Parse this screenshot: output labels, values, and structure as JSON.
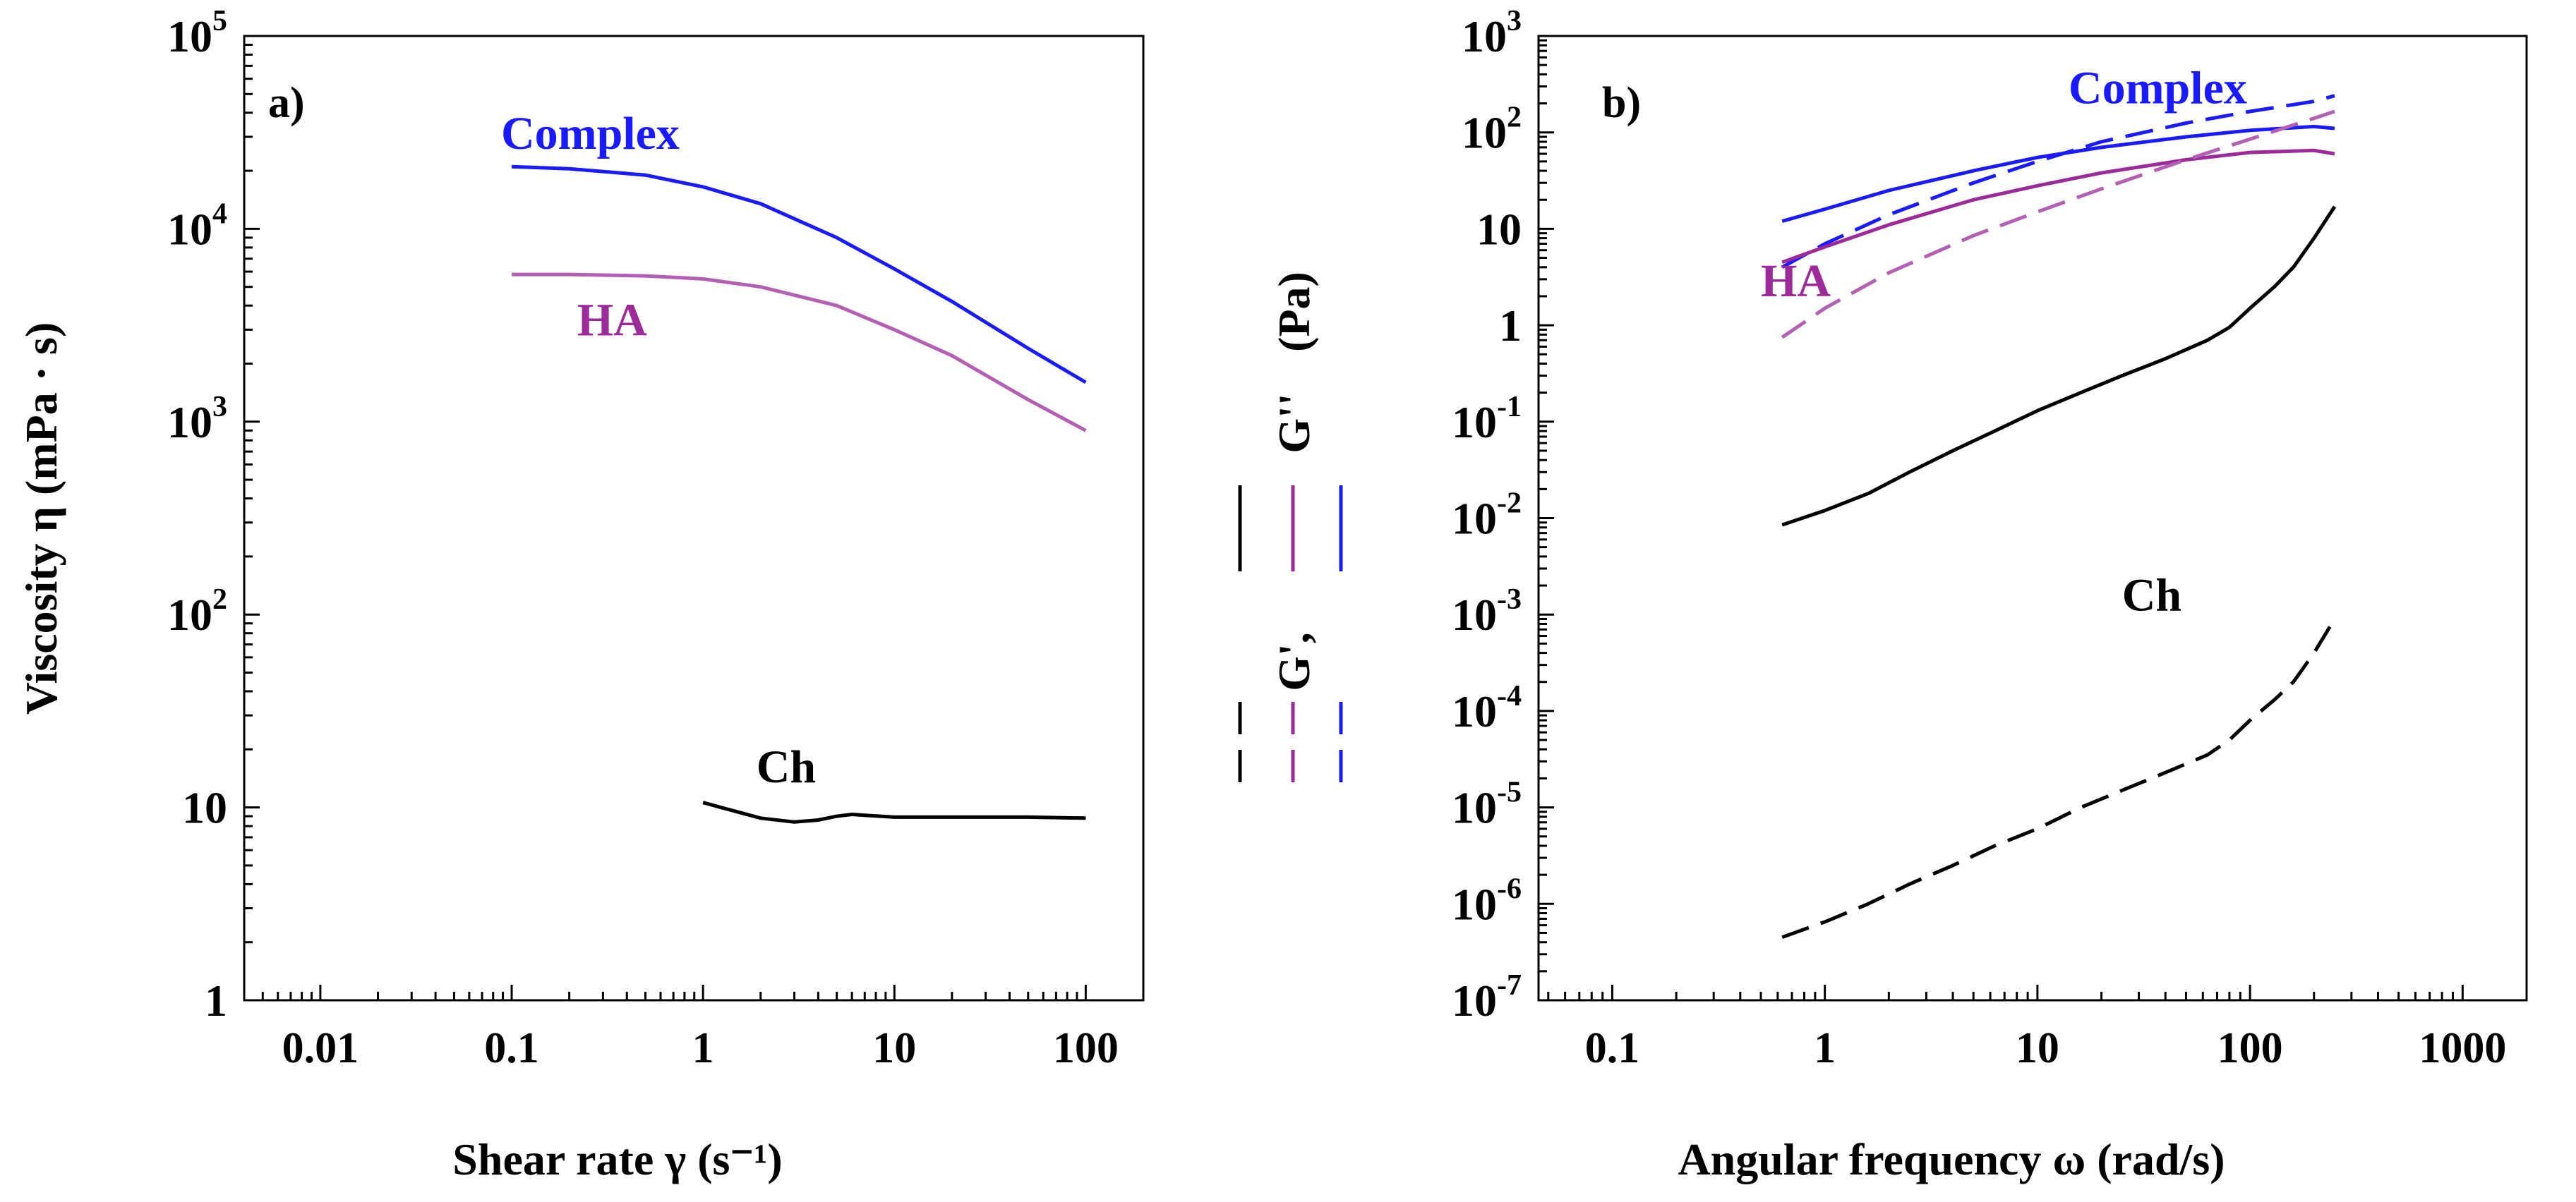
{
  "colors": {
    "black": "#000000",
    "magenta": "#9c2a98",
    "magenta_light": "#b25fb4",
    "blue": "#1a1aff"
  },
  "chart_data": [
    {
      "id": "a",
      "type": "line",
      "panel_label": "a)",
      "xscale": "log",
      "yscale": "log",
      "xlim": [
        0.004,
        200
      ],
      "ylim": [
        1,
        100000
      ],
      "xlabel": "Shear rate γ (s⁻¹)",
      "ylabel": "Viscosity η (mPa · s)",
      "xticks": [
        {
          "value": 0.01,
          "label": "0.01"
        },
        {
          "value": 0.1,
          "label": "0.1"
        },
        {
          "value": 1,
          "label": "1"
        },
        {
          "value": 10,
          "label": "10"
        },
        {
          "value": 100,
          "label": "100"
        }
      ],
      "yticks": [
        {
          "value": 1,
          "base": "1",
          "exp": ""
        },
        {
          "value": 10,
          "base": "10",
          "exp": ""
        },
        {
          "value": 100,
          "base": "10",
          "exp": "2"
        },
        {
          "value": 1000,
          "base": "10",
          "exp": "3"
        },
        {
          "value": 10000,
          "base": "10",
          "exp": "4"
        },
        {
          "value": 100000,
          "base": "10",
          "exp": "5"
        }
      ],
      "series": [
        {
          "name": "Complex",
          "color": "#1a1aff",
          "dash": "solid",
          "x": [
            0.1,
            0.2,
            0.5,
            1,
            2,
            5,
            10,
            20,
            50,
            100
          ],
          "y": [
            21000,
            20500,
            19000,
            16500,
            13500,
            9000,
            6200,
            4200,
            2400,
            1600
          ]
        },
        {
          "name": "HA",
          "color": "#b25fb4",
          "dash": "solid",
          "x": [
            0.1,
            0.2,
            0.5,
            1,
            2,
            5,
            10,
            20,
            50,
            100
          ],
          "y": [
            5800,
            5800,
            5700,
            5500,
            5000,
            4000,
            3000,
            2200,
            1300,
            900
          ]
        },
        {
          "name": "Ch",
          "color": "#000000",
          "dash": "solid",
          "x": [
            1,
            1.5,
            2,
            3,
            4,
            5,
            6,
            7,
            10,
            20,
            50,
            100
          ],
          "y": [
            10.6,
            9.5,
            8.8,
            8.4,
            8.6,
            9.0,
            9.2,
            9.1,
            8.9,
            8.9,
            8.9,
            8.8
          ]
        }
      ],
      "annotations": [
        {
          "text": "Complex",
          "color": "#1a1aff",
          "x": 0.088,
          "y": 26000
        },
        {
          "text": "HA",
          "color": "#9c2a98",
          "x": 0.22,
          "y": 2800
        },
        {
          "text": "Ch",
          "color": "#000000",
          "x": 1.9,
          "y": 13.5
        }
      ]
    },
    {
      "id": "b",
      "type": "line",
      "panel_label": "b)",
      "xscale": "log",
      "yscale": "log",
      "xlim": [
        0.045,
        2000
      ],
      "ylim": [
        1e-07,
        1000
      ],
      "xlabel": "Angular frequency ω (rad/s)",
      "ylabel": "G', G'' (Pa)",
      "xticks": [
        {
          "value": 0.1,
          "label": "0.1"
        },
        {
          "value": 1,
          "label": "1"
        },
        {
          "value": 10,
          "label": "10"
        },
        {
          "value": 100,
          "label": "100"
        },
        {
          "value": 1000,
          "label": "1000"
        }
      ],
      "yticks": [
        {
          "value": 1e-07,
          "base": "10",
          "exp": "-7"
        },
        {
          "value": 1e-06,
          "base": "10",
          "exp": "-6"
        },
        {
          "value": 1e-05,
          "base": "10",
          "exp": "-5"
        },
        {
          "value": 0.0001,
          "base": "10",
          "exp": "-4"
        },
        {
          "value": 0.001,
          "base": "10",
          "exp": "-3"
        },
        {
          "value": 0.01,
          "base": "10",
          "exp": "-2"
        },
        {
          "value": 0.1,
          "base": "10",
          "exp": "-1"
        },
        {
          "value": 1,
          "base": "1",
          "exp": ""
        },
        {
          "value": 10,
          "base": "10",
          "exp": ""
        },
        {
          "value": 100,
          "base": "10",
          "exp": "2"
        },
        {
          "value": 1000,
          "base": "10",
          "exp": "3"
        }
      ],
      "series": [
        {
          "name": "Complex G''",
          "color": "#1a1aff",
          "dash": "solid",
          "x": [
            0.63,
            1,
            2,
            5,
            10,
            20,
            50,
            100,
            200,
            250
          ],
          "y": [
            12,
            16,
            25,
            40,
            55,
            70,
            90,
            105,
            115,
            110
          ]
        },
        {
          "name": "Complex G'",
          "color": "#1a1aff",
          "dash": "dashed",
          "x": [
            0.63,
            1,
            2,
            5,
            10,
            20,
            50,
            100,
            200,
            250
          ],
          "y": [
            4,
            7,
            14,
            30,
            50,
            80,
            125,
            165,
            210,
            240
          ]
        },
        {
          "name": "HA G''",
          "color": "#9c2a98",
          "dash": "solid",
          "x": [
            0.63,
            1,
            2,
            5,
            10,
            20,
            50,
            100,
            200,
            250
          ],
          "y": [
            4.5,
            6.5,
            11,
            20,
            28,
            38,
            52,
            62,
            65,
            60
          ]
        },
        {
          "name": "HA G'",
          "color": "#b25fb4",
          "dash": "dashed",
          "x": [
            0.63,
            1,
            2,
            5,
            10,
            20,
            50,
            100,
            200,
            250
          ],
          "y": [
            0.75,
            1.5,
            3.5,
            8.5,
            15,
            26,
            52,
            85,
            140,
            165
          ]
        },
        {
          "name": "Ch G''",
          "color": "#000000",
          "dash": "solid",
          "x": [
            0.63,
            1,
            1.6,
            2.5,
            4,
            6.3,
            10,
            16,
            25,
            40,
            63,
            80,
            100,
            130,
            160,
            200,
            250
          ],
          "y": [
            0.0085,
            0.012,
            0.018,
            0.03,
            0.05,
            0.08,
            0.13,
            0.2,
            0.3,
            0.45,
            0.7,
            0.95,
            1.5,
            2.5,
            4,
            8,
            17
          ]
        },
        {
          "name": "Ch G'",
          "color": "#000000",
          "dash": "dashed",
          "x": [
            0.63,
            1,
            1.6,
            2.5,
            4,
            6.3,
            10,
            16,
            25,
            40,
            63,
            80,
            100,
            130,
            160,
            200,
            250
          ],
          "y": [
            4.5e-07,
            6.5e-07,
            1e-06,
            1.6e-06,
            2.5e-06,
            4e-06,
            6e-06,
            1e-05,
            1.5e-05,
            2.3e-05,
            3.5e-05,
            5e-05,
            8e-05,
            0.00013,
            0.0002,
            0.0004,
            0.0009
          ]
        }
      ],
      "annotations": [
        {
          "text": "Complex",
          "color": "#1a1aff",
          "x": 14,
          "y": 200
        },
        {
          "text": "HA",
          "color": "#9c2a98",
          "x": 0.5,
          "y": 2
        },
        {
          "text": "Ch",
          "color": "#000000",
          "x": 25,
          "y": 0.0011
        }
      ],
      "legend_key": {
        "left_label": "G',",
        "right_label": "G''",
        "colors": [
          "#000000",
          "#9c2a98",
          "#1a1aff"
        ]
      }
    }
  ]
}
